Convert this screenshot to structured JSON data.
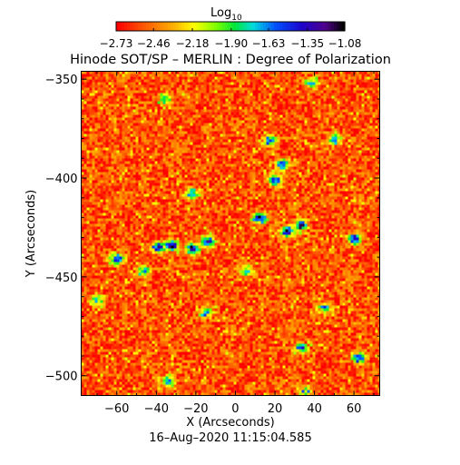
{
  "chart_data": {
    "type": "heatmap",
    "title": "Hinode SOT/SP – MERLIN : Degree of Polarization",
    "xlabel": "X (Arcseconds)",
    "ylabel": "Y (Arcseconds)",
    "xlim": [
      -78,
      73
    ],
    "ylim": [
      -510,
      -346
    ],
    "x_ticks": [
      -60,
      -40,
      -20,
      0,
      20,
      40,
      60
    ],
    "y_ticks": [
      -350,
      -400,
      -450,
      -500
    ],
    "colorbar": {
      "label": "Log",
      "label_subscript": "10",
      "range": [
        -2.73,
        -1.08
      ],
      "ticks": [
        -2.73,
        -2.46,
        -2.18,
        -1.9,
        -1.63,
        -1.35,
        -1.08
      ],
      "colormap": "rainbow: red-orange-yellow-green-cyan-blue-violet-black"
    },
    "timestamp": "16–Aug–2020 11:15:04.585",
    "background_level": -2.55,
    "hotspots": [
      {
        "x": -39,
        "y": -435,
        "value": -1.2
      },
      {
        "x": -32,
        "y": -434,
        "value": -1.15
      },
      {
        "x": -22,
        "y": -436,
        "value": -1.2
      },
      {
        "x": -14,
        "y": -432,
        "value": -1.25
      },
      {
        "x": -60,
        "y": -441,
        "value": -1.3
      },
      {
        "x": -47,
        "y": -447,
        "value": -1.45
      },
      {
        "x": 12,
        "y": -420,
        "value": -1.15
      },
      {
        "x": 26,
        "y": -427,
        "value": -1.15
      },
      {
        "x": 33,
        "y": -424,
        "value": -1.35
      },
      {
        "x": 20,
        "y": -401,
        "value": -1.25
      },
      {
        "x": 24,
        "y": -393,
        "value": -1.35
      },
      {
        "x": 17,
        "y": -381,
        "value": -1.35
      },
      {
        "x": 50,
        "y": -380,
        "value": -1.45
      },
      {
        "x": 60,
        "y": -431,
        "value": -1.2
      },
      {
        "x": 62,
        "y": -491,
        "value": -1.25
      },
      {
        "x": 33,
        "y": -486,
        "value": -1.35
      },
      {
        "x": -22,
        "y": -408,
        "value": -1.6
      },
      {
        "x": 5,
        "y": -447,
        "value": -1.55
      },
      {
        "x": -15,
        "y": -468,
        "value": -1.6
      },
      {
        "x": -70,
        "y": -462,
        "value": -1.55
      },
      {
        "x": -36,
        "y": -360,
        "value": -1.65
      },
      {
        "x": 38,
        "y": -352,
        "value": -1.65
      },
      {
        "x": 45,
        "y": -466,
        "value": -1.6
      },
      {
        "x": -34,
        "y": -503,
        "value": -1.6
      },
      {
        "x": 35,
        "y": -508,
        "value": -1.7
      }
    ]
  }
}
